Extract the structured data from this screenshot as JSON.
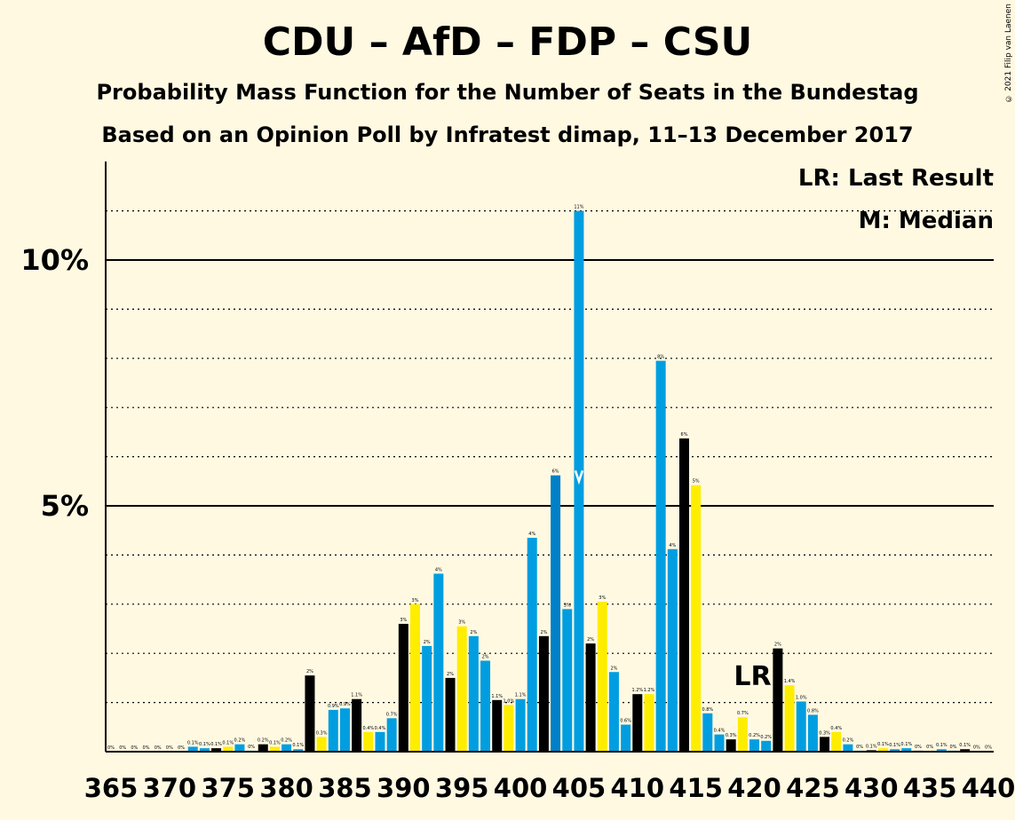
{
  "chart_data": {
    "type": "bar",
    "title": "CDU – AfD – FDP – CSU",
    "subtitle": "Probability Mass Function for the Number of Seats in the Bundestag",
    "subtitle2": "Based on an Opinion Poll by Infratest dimap, 11–13 December 2017",
    "copyright": "© 2021 Filip van Laenen",
    "legend": {
      "last_result": "LR: Last Result",
      "median": "M: Median"
    },
    "y_ticks": [
      {
        "value": 10,
        "label": "10%"
      },
      {
        "value": 5,
        "label": "5%"
      }
    ],
    "ylim": [
      0,
      12
    ],
    "x_ticks": [
      365,
      370,
      375,
      380,
      385,
      390,
      395,
      400,
      405,
      410,
      415,
      420,
      425,
      430,
      435,
      440
    ],
    "last_result_seat": 420,
    "last_result_label": "LR",
    "median_seat": 405,
    "bars": [
      {
        "seat": 365,
        "value": 0.0,
        "label": "0%"
      },
      {
        "seat": 366,
        "value": 0.0,
        "label": "0%"
      },
      {
        "seat": 367,
        "value": 0.0,
        "label": "0%"
      },
      {
        "seat": 368,
        "value": 0.0,
        "label": "0%"
      },
      {
        "seat": 369,
        "value": 0.0,
        "label": "0%"
      },
      {
        "seat": 370,
        "value": 0.0,
        "label": "0%"
      },
      {
        "seat": 371,
        "value": 0.0,
        "label": "0%"
      },
      {
        "seat": 372,
        "value": 0.1,
        "label": "0.1%"
      },
      {
        "seat": 373,
        "value": 0.07,
        "label": "0.1%"
      },
      {
        "seat": 374,
        "value": 0.07,
        "label": "0.1%"
      },
      {
        "seat": 375,
        "value": 0.1,
        "label": "0.1%"
      },
      {
        "seat": 376,
        "value": 0.15,
        "label": "0.2%"
      },
      {
        "seat": 377,
        "value": 0.02,
        "label": "0%"
      },
      {
        "seat": 378,
        "value": 0.15,
        "label": "0.2%"
      },
      {
        "seat": 379,
        "value": 0.1,
        "label": "0.1%"
      },
      {
        "seat": 380,
        "value": 0.15,
        "label": "0.2%"
      },
      {
        "seat": 381,
        "value": 0.05,
        "label": "0.1%"
      },
      {
        "seat": 382,
        "value": 1.55,
        "label": "2%"
      },
      {
        "seat": 383,
        "value": 0.3,
        "label": "0.3%"
      },
      {
        "seat": 384,
        "value": 0.85,
        "label": "0.9%"
      },
      {
        "seat": 385,
        "value": 0.88,
        "label": "0.9%"
      },
      {
        "seat": 386,
        "value": 1.07,
        "label": "1.1%"
      },
      {
        "seat": 387,
        "value": 0.4,
        "label": "0.4%"
      },
      {
        "seat": 388,
        "value": 0.4,
        "label": "0.4%"
      },
      {
        "seat": 389,
        "value": 0.68,
        "label": "0.7%"
      },
      {
        "seat": 390,
        "value": 2.6,
        "label": "3%"
      },
      {
        "seat": 391,
        "value": 3.0,
        "label": "3%"
      },
      {
        "seat": 392,
        "value": 2.15,
        "label": "2%"
      },
      {
        "seat": 393,
        "value": 3.62,
        "label": "4%"
      },
      {
        "seat": 394,
        "value": 1.5,
        "label": "2%"
      },
      {
        "seat": 395,
        "value": 2.55,
        "label": "3%"
      },
      {
        "seat": 396,
        "value": 2.35,
        "label": "2%"
      },
      {
        "seat": 397,
        "value": 1.85,
        "label": "2%"
      },
      {
        "seat": 398,
        "value": 1.05,
        "label": "1.1%"
      },
      {
        "seat": 399,
        "value": 0.95,
        "label": "1.0%"
      },
      {
        "seat": 400,
        "value": 1.07,
        "label": "1.1%"
      },
      {
        "seat": 401,
        "value": 4.35,
        "label": "4%"
      },
      {
        "seat": 402,
        "value": 2.35,
        "label": "2%"
      },
      {
        "seat": 403,
        "value": 5.62,
        "label": "6%"
      },
      {
        "seat": 404,
        "value": 2.9,
        "label": "3%"
      },
      {
        "seat": 405,
        "value": 11.0,
        "label": "11%"
      },
      {
        "seat": 406,
        "value": 2.2,
        "label": "2%"
      },
      {
        "seat": 407,
        "value": 3.05,
        "label": "3%"
      },
      {
        "seat": 408,
        "value": 1.62,
        "label": "2%"
      },
      {
        "seat": 409,
        "value": 0.55,
        "label": "0.6%"
      },
      {
        "seat": 410,
        "value": 1.17,
        "label": "1.2%"
      },
      {
        "seat": 411,
        "value": 1.17,
        "label": "1.2%"
      },
      {
        "seat": 412,
        "value": 7.95,
        "label": "8%"
      },
      {
        "seat": 413,
        "value": 4.12,
        "label": "4%"
      },
      {
        "seat": 414,
        "value": 6.37,
        "label": "6%"
      },
      {
        "seat": 415,
        "value": 5.42,
        "label": "5%"
      },
      {
        "seat": 416,
        "value": 0.78,
        "label": "0.8%"
      },
      {
        "seat": 417,
        "value": 0.35,
        "label": "0.4%"
      },
      {
        "seat": 418,
        "value": 0.25,
        "label": "0.3%"
      },
      {
        "seat": 419,
        "value": 0.7,
        "label": "0.7%"
      },
      {
        "seat": 420,
        "value": 0.25,
        "label": "0.2%"
      },
      {
        "seat": 421,
        "value": 0.22,
        "label": "0.2%"
      },
      {
        "seat": 422,
        "value": 2.1,
        "label": "2%"
      },
      {
        "seat": 423,
        "value": 1.35,
        "label": "1.4%"
      },
      {
        "seat": 424,
        "value": 1.02,
        "label": "1.0%"
      },
      {
        "seat": 425,
        "value": 0.75,
        "label": "0.8%"
      },
      {
        "seat": 426,
        "value": 0.3,
        "label": "0.3%"
      },
      {
        "seat": 427,
        "value": 0.4,
        "label": "0.4%"
      },
      {
        "seat": 428,
        "value": 0.15,
        "label": "0.2%"
      },
      {
        "seat": 429,
        "value": 0.02,
        "label": "0%"
      },
      {
        "seat": 430,
        "value": 0.03,
        "label": "0.1%"
      },
      {
        "seat": 431,
        "value": 0.07,
        "label": "0.1%"
      },
      {
        "seat": 432,
        "value": 0.05,
        "label": "0.1%"
      },
      {
        "seat": 433,
        "value": 0.07,
        "label": "0.1%"
      },
      {
        "seat": 434,
        "value": 0.02,
        "label": "0%"
      },
      {
        "seat": 435,
        "value": 0.02,
        "label": "0%"
      },
      {
        "seat": 436,
        "value": 0.05,
        "label": "0.1%"
      },
      {
        "seat": 437,
        "value": 0.02,
        "label": "0%"
      },
      {
        "seat": 438,
        "value": 0.05,
        "label": "0.1%"
      },
      {
        "seat": 439,
        "value": 0.01,
        "label": "0%"
      },
      {
        "seat": 440,
        "value": 0.01,
        "label": "0%"
      }
    ],
    "colors": {
      "background": "#FFF9E2",
      "blue": "#009EE0",
      "black": "#000000",
      "yellow": "#FFED00",
      "dark_blue": "#0080C8",
      "median_marker": "#FFFFFF"
    },
    "color_cycle": [
      "blue",
      "black",
      "yellow",
      "blue"
    ]
  }
}
